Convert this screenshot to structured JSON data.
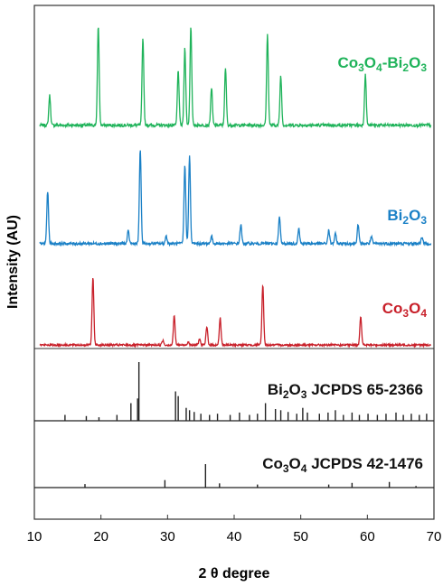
{
  "chart_data": {
    "type": "line",
    "xlabel_parts": [
      "2 ",
      "θ",
      " degree"
    ],
    "ylabel": "Intensity (AU)",
    "xlim": [
      10,
      70
    ],
    "xticks": [
      10,
      20,
      30,
      40,
      50,
      60,
      70
    ],
    "grid": false,
    "series": [
      {
        "name_parts": [
          [
            "Co",
            ""
          ],
          [
            "3",
            "sub"
          ],
          [
            "O",
            ""
          ],
          [
            "4",
            "sub"
          ],
          [
            "-Bi",
            ""
          ],
          [
            "2",
            "sub"
          ],
          [
            "O",
            ""
          ],
          [
            "3",
            "sub"
          ]
        ],
        "color": "#1fb35a",
        "peaks": [
          [
            12.3,
            0.3
          ],
          [
            19.6,
            1.0
          ],
          [
            26.3,
            0.88
          ],
          [
            31.6,
            0.55
          ],
          [
            32.6,
            0.78
          ],
          [
            33.5,
            1.0
          ],
          [
            36.6,
            0.38
          ],
          [
            38.7,
            0.57
          ],
          [
            45.0,
            0.91
          ],
          [
            47.0,
            0.5
          ],
          [
            59.7,
            0.51
          ]
        ]
      },
      {
        "name_parts": [
          [
            "Bi",
            ""
          ],
          [
            "2",
            "sub"
          ],
          [
            "O",
            ""
          ],
          [
            "3",
            "sub"
          ]
        ],
        "color": "#1a80c6",
        "peaks": [
          [
            12.0,
            0.55
          ],
          [
            24.1,
            0.13
          ],
          [
            25.9,
            1.0
          ],
          [
            29.8,
            0.08
          ],
          [
            32.6,
            0.83
          ],
          [
            33.3,
            0.92
          ],
          [
            36.6,
            0.08
          ],
          [
            41.0,
            0.2
          ],
          [
            46.8,
            0.28
          ],
          [
            49.7,
            0.16
          ],
          [
            54.2,
            0.14
          ],
          [
            55.2,
            0.1
          ],
          [
            58.6,
            0.2
          ],
          [
            60.6,
            0.07
          ],
          [
            68.2,
            0.07
          ]
        ]
      },
      {
        "name_parts": [
          [
            "Co",
            ""
          ],
          [
            "3",
            "sub"
          ],
          [
            "O",
            ""
          ],
          [
            "4",
            "sub"
          ]
        ],
        "color": "#c8202a",
        "peaks": [
          [
            18.8,
            1.0
          ],
          [
            29.3,
            0.07
          ],
          [
            31.0,
            0.43
          ],
          [
            33.1,
            0.05
          ],
          [
            34.8,
            0.09
          ],
          [
            35.9,
            0.27
          ],
          [
            37.9,
            0.4
          ],
          [
            44.3,
            0.89
          ],
          [
            59.0,
            0.43
          ]
        ]
      }
    ],
    "references": [
      {
        "name_parts": [
          [
            "Bi",
            ""
          ],
          [
            "2",
            "sub"
          ],
          [
            "O",
            ""
          ],
          [
            "3",
            "sub"
          ],
          [
            " JCPDS 65-2366",
            ""
          ]
        ],
        "sticks": [
          [
            14.6,
            0.1
          ],
          [
            17.8,
            0.08
          ],
          [
            19.7,
            0.06
          ],
          [
            22.4,
            0.1
          ],
          [
            24.5,
            0.3
          ],
          [
            25.5,
            0.38
          ],
          [
            25.7,
            1.0
          ],
          [
            31.2,
            0.5
          ],
          [
            31.6,
            0.42
          ],
          [
            32.8,
            0.22
          ],
          [
            33.3,
            0.18
          ],
          [
            34.0,
            0.15
          ],
          [
            35.0,
            0.12
          ],
          [
            36.3,
            0.1
          ],
          [
            37.5,
            0.12
          ],
          [
            39.4,
            0.1
          ],
          [
            40.8,
            0.14
          ],
          [
            42.3,
            0.1
          ],
          [
            43.5,
            0.12
          ],
          [
            44.7,
            0.3
          ],
          [
            46.2,
            0.2
          ],
          [
            47.0,
            0.18
          ],
          [
            48.1,
            0.15
          ],
          [
            49.4,
            0.12
          ],
          [
            50.3,
            0.22
          ],
          [
            51.0,
            0.14
          ],
          [
            52.8,
            0.12
          ],
          [
            54.1,
            0.14
          ],
          [
            55.2,
            0.18
          ],
          [
            56.4,
            0.1
          ],
          [
            57.7,
            0.14
          ],
          [
            58.8,
            0.1
          ],
          [
            60.1,
            0.12
          ],
          [
            61.5,
            0.1
          ],
          [
            62.8,
            0.12
          ],
          [
            64.3,
            0.14
          ],
          [
            65.4,
            0.1
          ],
          [
            66.6,
            0.12
          ],
          [
            67.8,
            0.1
          ],
          [
            68.9,
            0.12
          ]
        ]
      },
      {
        "name_parts": [
          [
            "Co",
            ""
          ],
          [
            "3",
            "sub"
          ],
          [
            "O",
            ""
          ],
          [
            "4",
            "sub"
          ],
          [
            " JCPDS 42-1476",
            ""
          ]
        ],
        "sticks": [
          [
            17.6,
            0.15
          ],
          [
            29.6,
            0.32
          ],
          [
            35.7,
            1.0
          ],
          [
            37.8,
            0.18
          ],
          [
            43.5,
            0.13
          ],
          [
            54.2,
            0.13
          ],
          [
            57.7,
            0.2
          ],
          [
            63.3,
            0.24
          ],
          [
            67.3,
            0.07
          ]
        ]
      }
    ]
  }
}
